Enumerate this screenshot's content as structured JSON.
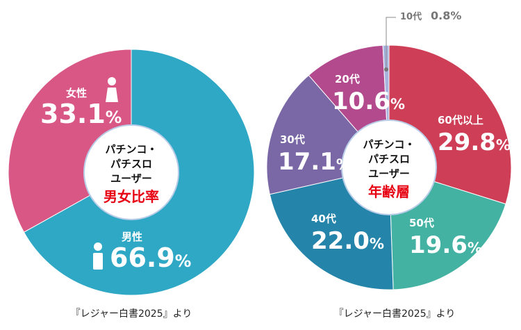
{
  "chart_data": [
    {
      "type": "pie",
      "center_title": [
        "パチンコ・",
        "パチスロ",
        "ユーザー"
      ],
      "center_highlight": "男女比率",
      "categories": [
        "男性",
        "女性"
      ],
      "values": [
        66.9,
        33.1
      ],
      "value_labels": [
        "66.9",
        "33.1"
      ],
      "unit": "%",
      "colors": [
        "#2fa8c6",
        "#d95784"
      ],
      "icons": [
        "male-person-icon",
        "female-person-icon"
      ],
      "source": "『レジャー白書2025』より"
    },
    {
      "type": "pie",
      "center_title": [
        "パチンコ・",
        "パチスロ",
        "ユーザー"
      ],
      "center_highlight": "年齢層",
      "categories": [
        "60代以上",
        "50代",
        "40代",
        "30代",
        "20代",
        "10代"
      ],
      "values": [
        29.8,
        19.6,
        22.0,
        17.1,
        10.6,
        0.8
      ],
      "value_labels": [
        "29.8",
        "19.6",
        "22.0",
        "17.1",
        "10.6",
        "0.8"
      ],
      "unit": "%",
      "colors": [
        "#ce3f57",
        "#43b2a2",
        "#2484a9",
        "#7a68a6",
        "#b44a8e",
        "#a7b4de"
      ],
      "source": "『レジャー白書2025』より"
    }
  ],
  "accent_color": "#e60012"
}
